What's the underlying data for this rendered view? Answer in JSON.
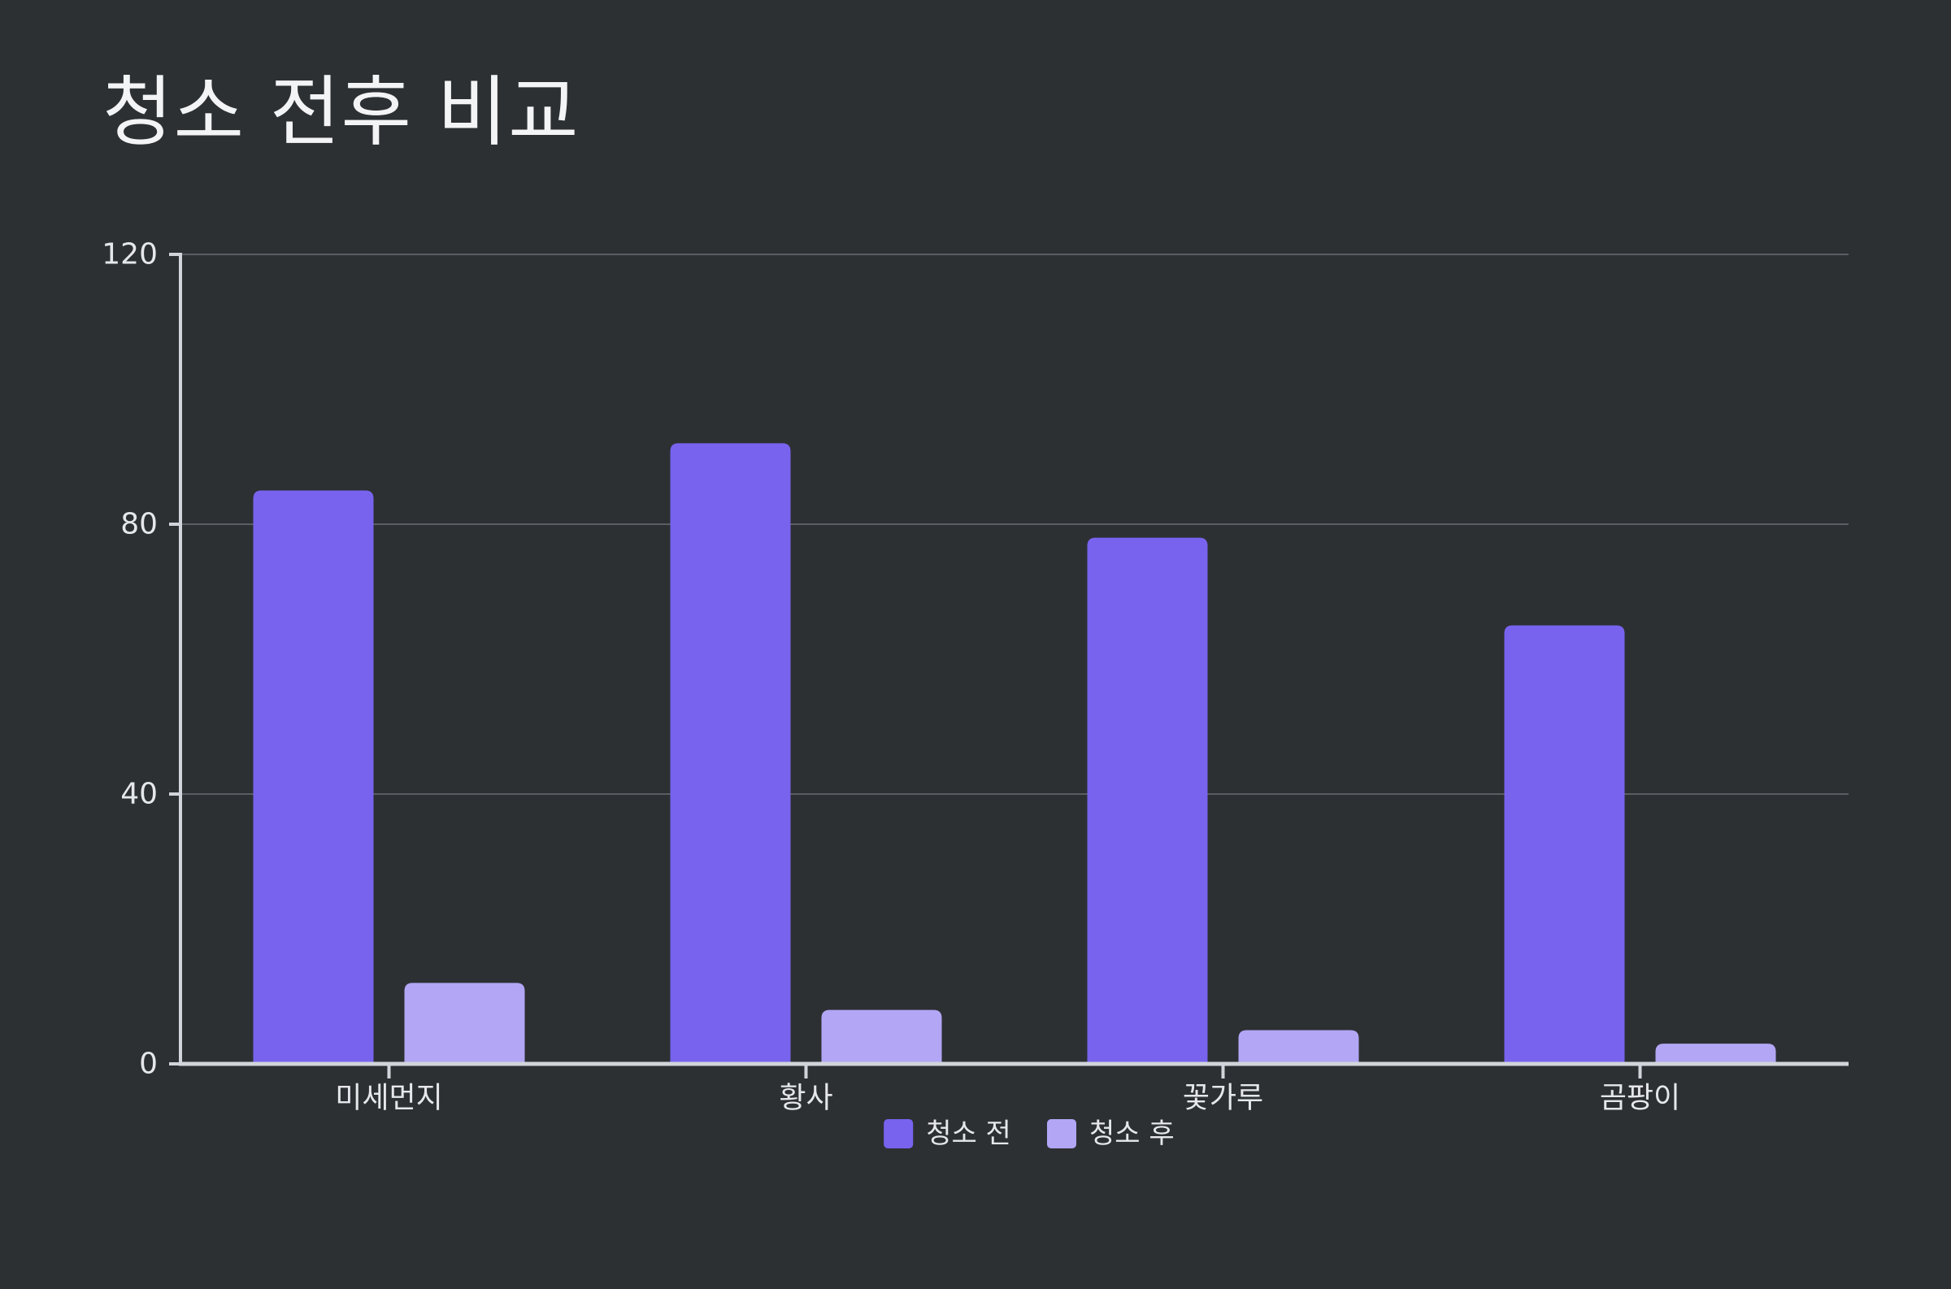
{
  "colors": {
    "background": "#2d3033",
    "axis": "#d1d5db",
    "gridline": "#5a5e63",
    "text": "#e5e7eb",
    "title": "#f3f4f6"
  },
  "chart_data": {
    "type": "bar",
    "title": "청소 전후 비교",
    "xlabel": "",
    "ylabel": "",
    "categories": [
      "미세먼지",
      "황사",
      "꽃가루",
      "곰팡이"
    ],
    "series": [
      {
        "name": "청소 전",
        "color": "#7863ef",
        "values": [
          85,
          92,
          78,
          65
        ]
      },
      {
        "name": "청소 후",
        "color": "#b2a6f5",
        "values": [
          12,
          8,
          5,
          3
        ]
      }
    ],
    "ylim": [
      0,
      120
    ],
    "yticks": [
      0,
      40,
      80,
      120
    ],
    "grid": true,
    "legend_position": "bottom-center"
  }
}
